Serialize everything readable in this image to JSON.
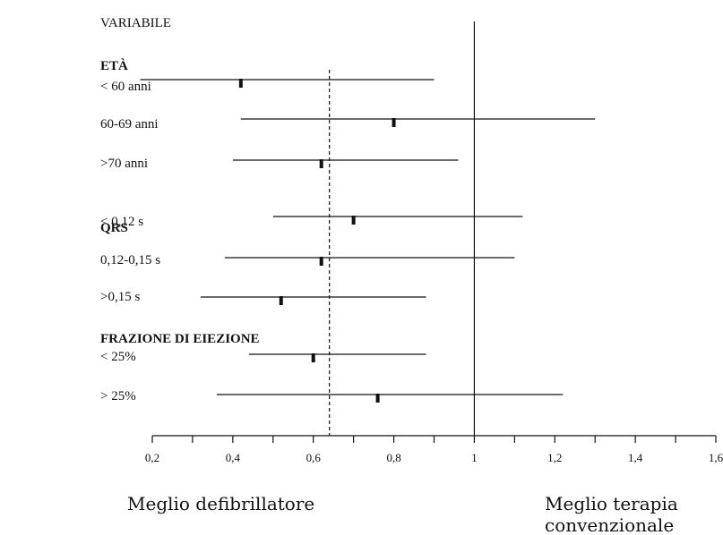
{
  "chart_data": {
    "type": "forest",
    "header": "VARIABILE",
    "groups": [
      {
        "label": "ETÀ",
        "rows": [
          {
            "label": "< 60 anni",
            "estimate": 0.42,
            "ci": [
              0.17,
              0.9
            ]
          },
          {
            "label": "60-69 anni",
            "estimate": 0.8,
            "ci": [
              0.42,
              1.3
            ]
          },
          {
            "label": ">70 anni",
            "estimate": 0.62,
            "ci": [
              0.4,
              0.96
            ]
          }
        ]
      },
      {
        "label": "QRS",
        "rows": [
          {
            "label": "< 0,12 s",
            "estimate": 0.7,
            "ci": [
              0.5,
              1.12
            ]
          },
          {
            "label": "0,12-0,15 s",
            "estimate": 0.62,
            "ci": [
              0.38,
              1.1
            ]
          },
          {
            "label": ">0,15 s",
            "estimate": 0.52,
            "ci": [
              0.32,
              0.88
            ]
          }
        ]
      },
      {
        "label": "FRAZIONE DI EIEZIONE",
        "rows": [
          {
            "label": "< 25%",
            "estimate": 0.6,
            "ci": [
              0.44,
              0.88
            ]
          },
          {
            "label": "> 25%",
            "estimate": 0.76,
            "ci": [
              0.36,
              1.22
            ]
          }
        ]
      }
    ],
    "reference_line": 1,
    "overall_estimate_line": 0.64,
    "xlim": [
      0.2,
      1.6
    ],
    "xticks": [
      "0,2",
      "0,4",
      "0,6",
      "0,8",
      "1",
      "1,2",
      "1,4",
      "1,6"
    ],
    "xtick_values": [
      0.2,
      0.4,
      0.6,
      0.8,
      1.0,
      1.2,
      1.4,
      1.6
    ],
    "minor_step": 0.1,
    "footer_left": "Meglio defibrillatore",
    "footer_right": [
      "Meglio terapia",
      "convenzionale"
    ]
  }
}
